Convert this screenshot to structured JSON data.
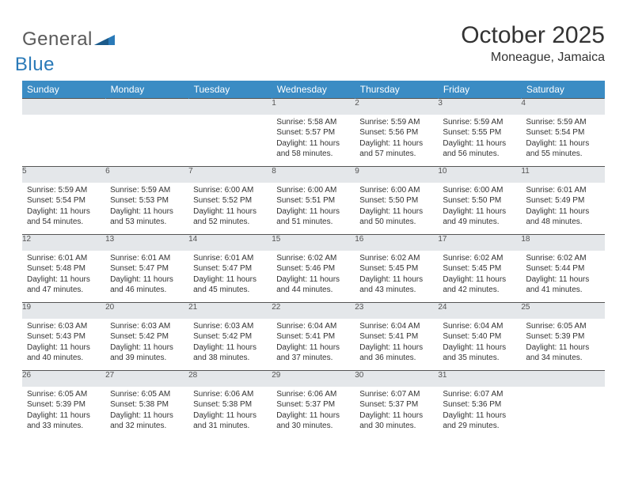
{
  "brand": {
    "part1": "General",
    "part2": "Blue"
  },
  "title": "October 2025",
  "location": "Moneague, Jamaica",
  "colors": {
    "header_bg": "#3b8cc4",
    "header_fg": "#ffffff",
    "daynum_bg": "#e4e7ea",
    "rule": "#555555",
    "brand_gray": "#5a5a5a",
    "brand_blue": "#2a7ab8",
    "page_bg": "#ffffff"
  },
  "typography": {
    "title_fontsize": 30,
    "location_fontsize": 16,
    "header_fontsize": 12,
    "daynum_fontsize": 12,
    "body_fontsize": 10
  },
  "dow": [
    "Sunday",
    "Monday",
    "Tuesday",
    "Wednesday",
    "Thursday",
    "Friday",
    "Saturday"
  ],
  "weeks": [
    [
      null,
      null,
      null,
      {
        "n": "1",
        "sr": "Sunrise: 5:58 AM",
        "ss": "Sunset: 5:57 PM",
        "d1": "Daylight: 11 hours",
        "d2": "and 58 minutes."
      },
      {
        "n": "2",
        "sr": "Sunrise: 5:59 AM",
        "ss": "Sunset: 5:56 PM",
        "d1": "Daylight: 11 hours",
        "d2": "and 57 minutes."
      },
      {
        "n": "3",
        "sr": "Sunrise: 5:59 AM",
        "ss": "Sunset: 5:55 PM",
        "d1": "Daylight: 11 hours",
        "d2": "and 56 minutes."
      },
      {
        "n": "4",
        "sr": "Sunrise: 5:59 AM",
        "ss": "Sunset: 5:54 PM",
        "d1": "Daylight: 11 hours",
        "d2": "and 55 minutes."
      }
    ],
    [
      {
        "n": "5",
        "sr": "Sunrise: 5:59 AM",
        "ss": "Sunset: 5:54 PM",
        "d1": "Daylight: 11 hours",
        "d2": "and 54 minutes."
      },
      {
        "n": "6",
        "sr": "Sunrise: 5:59 AM",
        "ss": "Sunset: 5:53 PM",
        "d1": "Daylight: 11 hours",
        "d2": "and 53 minutes."
      },
      {
        "n": "7",
        "sr": "Sunrise: 6:00 AM",
        "ss": "Sunset: 5:52 PM",
        "d1": "Daylight: 11 hours",
        "d2": "and 52 minutes."
      },
      {
        "n": "8",
        "sr": "Sunrise: 6:00 AM",
        "ss": "Sunset: 5:51 PM",
        "d1": "Daylight: 11 hours",
        "d2": "and 51 minutes."
      },
      {
        "n": "9",
        "sr": "Sunrise: 6:00 AM",
        "ss": "Sunset: 5:50 PM",
        "d1": "Daylight: 11 hours",
        "d2": "and 50 minutes."
      },
      {
        "n": "10",
        "sr": "Sunrise: 6:00 AM",
        "ss": "Sunset: 5:50 PM",
        "d1": "Daylight: 11 hours",
        "d2": "and 49 minutes."
      },
      {
        "n": "11",
        "sr": "Sunrise: 6:01 AM",
        "ss": "Sunset: 5:49 PM",
        "d1": "Daylight: 11 hours",
        "d2": "and 48 minutes."
      }
    ],
    [
      {
        "n": "12",
        "sr": "Sunrise: 6:01 AM",
        "ss": "Sunset: 5:48 PM",
        "d1": "Daylight: 11 hours",
        "d2": "and 47 minutes."
      },
      {
        "n": "13",
        "sr": "Sunrise: 6:01 AM",
        "ss": "Sunset: 5:47 PM",
        "d1": "Daylight: 11 hours",
        "d2": "and 46 minutes."
      },
      {
        "n": "14",
        "sr": "Sunrise: 6:01 AM",
        "ss": "Sunset: 5:47 PM",
        "d1": "Daylight: 11 hours",
        "d2": "and 45 minutes."
      },
      {
        "n": "15",
        "sr": "Sunrise: 6:02 AM",
        "ss": "Sunset: 5:46 PM",
        "d1": "Daylight: 11 hours",
        "d2": "and 44 minutes."
      },
      {
        "n": "16",
        "sr": "Sunrise: 6:02 AM",
        "ss": "Sunset: 5:45 PM",
        "d1": "Daylight: 11 hours",
        "d2": "and 43 minutes."
      },
      {
        "n": "17",
        "sr": "Sunrise: 6:02 AM",
        "ss": "Sunset: 5:45 PM",
        "d1": "Daylight: 11 hours",
        "d2": "and 42 minutes."
      },
      {
        "n": "18",
        "sr": "Sunrise: 6:02 AM",
        "ss": "Sunset: 5:44 PM",
        "d1": "Daylight: 11 hours",
        "d2": "and 41 minutes."
      }
    ],
    [
      {
        "n": "19",
        "sr": "Sunrise: 6:03 AM",
        "ss": "Sunset: 5:43 PM",
        "d1": "Daylight: 11 hours",
        "d2": "and 40 minutes."
      },
      {
        "n": "20",
        "sr": "Sunrise: 6:03 AM",
        "ss": "Sunset: 5:42 PM",
        "d1": "Daylight: 11 hours",
        "d2": "and 39 minutes."
      },
      {
        "n": "21",
        "sr": "Sunrise: 6:03 AM",
        "ss": "Sunset: 5:42 PM",
        "d1": "Daylight: 11 hours",
        "d2": "and 38 minutes."
      },
      {
        "n": "22",
        "sr": "Sunrise: 6:04 AM",
        "ss": "Sunset: 5:41 PM",
        "d1": "Daylight: 11 hours",
        "d2": "and 37 minutes."
      },
      {
        "n": "23",
        "sr": "Sunrise: 6:04 AM",
        "ss": "Sunset: 5:41 PM",
        "d1": "Daylight: 11 hours",
        "d2": "and 36 minutes."
      },
      {
        "n": "24",
        "sr": "Sunrise: 6:04 AM",
        "ss": "Sunset: 5:40 PM",
        "d1": "Daylight: 11 hours",
        "d2": "and 35 minutes."
      },
      {
        "n": "25",
        "sr": "Sunrise: 6:05 AM",
        "ss": "Sunset: 5:39 PM",
        "d1": "Daylight: 11 hours",
        "d2": "and 34 minutes."
      }
    ],
    [
      {
        "n": "26",
        "sr": "Sunrise: 6:05 AM",
        "ss": "Sunset: 5:39 PM",
        "d1": "Daylight: 11 hours",
        "d2": "and 33 minutes."
      },
      {
        "n": "27",
        "sr": "Sunrise: 6:05 AM",
        "ss": "Sunset: 5:38 PM",
        "d1": "Daylight: 11 hours",
        "d2": "and 32 minutes."
      },
      {
        "n": "28",
        "sr": "Sunrise: 6:06 AM",
        "ss": "Sunset: 5:38 PM",
        "d1": "Daylight: 11 hours",
        "d2": "and 31 minutes."
      },
      {
        "n": "29",
        "sr": "Sunrise: 6:06 AM",
        "ss": "Sunset: 5:37 PM",
        "d1": "Daylight: 11 hours",
        "d2": "and 30 minutes."
      },
      {
        "n": "30",
        "sr": "Sunrise: 6:07 AM",
        "ss": "Sunset: 5:37 PM",
        "d1": "Daylight: 11 hours",
        "d2": "and 30 minutes."
      },
      {
        "n": "31",
        "sr": "Sunrise: 6:07 AM",
        "ss": "Sunset: 5:36 PM",
        "d1": "Daylight: 11 hours",
        "d2": "and 29 minutes."
      },
      null
    ]
  ]
}
